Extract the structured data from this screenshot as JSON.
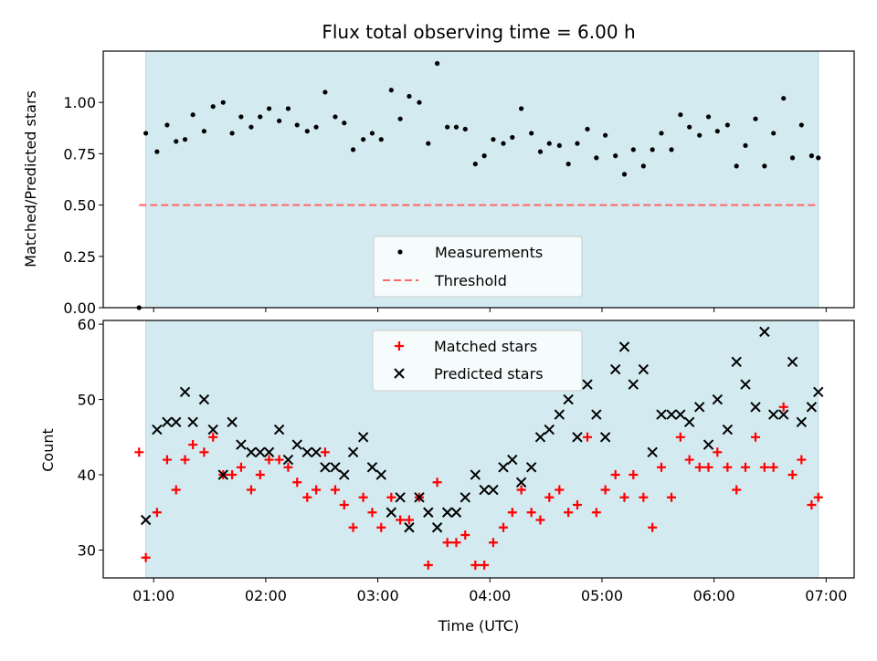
{
  "chart_data": [
    {
      "type": "scatter",
      "title": "Flux total observing time = 6.00 h",
      "xlabel": "",
      "ylabel": "Matched/Predicted stars",
      "xlim_hours": [
        0.55,
        7.25
      ],
      "ylim": [
        0.0,
        1.25
      ],
      "yticks": [
        "0.00",
        "0.25",
        "0.50",
        "0.75",
        "1.00"
      ],
      "ytick_values": [
        0.0,
        0.25,
        0.5,
        0.75,
        1.0
      ],
      "observing_window_hours": [
        0.93,
        6.93
      ],
      "colors": {
        "measurements": "#000000",
        "threshold": "#ff6666",
        "window": "#d3eaf0"
      },
      "threshold": {
        "name": "Threshold",
        "value": 0.5,
        "x_range": [
          0.87,
          6.93
        ]
      },
      "legend": {
        "placement": "lower center",
        "entries": [
          "Measurements",
          "Threshold"
        ]
      },
      "series": [
        {
          "name": "Measurements",
          "x": [
            0.87,
            0.93,
            1.03,
            1.12,
            1.2,
            1.28,
            1.35,
            1.45,
            1.53,
            1.62,
            1.7,
            1.78,
            1.87,
            1.95,
            2.03,
            2.12,
            2.2,
            2.28,
            2.37,
            2.45,
            2.53,
            2.62,
            2.7,
            2.78,
            2.87,
            2.95,
            3.03,
            3.12,
            3.2,
            3.28,
            3.37,
            3.45,
            3.53,
            3.62,
            3.7,
            3.78,
            3.87,
            3.95,
            4.03,
            4.12,
            4.2,
            4.28,
            4.37,
            4.45,
            4.53,
            4.62,
            4.7,
            4.78,
            4.87,
            4.95,
            5.03,
            5.12,
            5.2,
            5.28,
            5.37,
            5.45,
            5.53,
            5.62,
            5.7,
            5.78,
            5.87,
            5.95,
            6.03,
            6.12,
            6.2,
            6.28,
            6.37,
            6.45,
            6.53,
            6.62,
            6.7,
            6.78,
            6.87,
            6.93
          ],
          "y": [
            0.0,
            0.85,
            0.76,
            0.89,
            0.81,
            0.82,
            0.94,
            0.86,
            0.98,
            1.0,
            0.85,
            0.93,
            0.88,
            0.93,
            0.97,
            0.91,
            0.97,
            0.89,
            0.86,
            0.88,
            1.05,
            0.93,
            0.9,
            0.77,
            0.82,
            0.85,
            0.82,
            1.06,
            0.92,
            1.03,
            1.0,
            0.8,
            1.19,
            0.88,
            0.88,
            0.87,
            0.7,
            0.74,
            0.82,
            0.8,
            0.83,
            0.97,
            0.85,
            0.76,
            0.8,
            0.79,
            0.7,
            0.8,
            0.87,
            0.73,
            0.84,
            0.74,
            0.65,
            0.77,
            0.69,
            0.77,
            0.85,
            0.77,
            0.94,
            0.88,
            0.84,
            0.93,
            0.86,
            0.89,
            0.69,
            0.79,
            0.92,
            0.69,
            0.85,
            1.02,
            0.73,
            0.89,
            0.74,
            0.73
          ]
        }
      ]
    },
    {
      "type": "scatter",
      "title": "",
      "xlabel": "Time (UTC)",
      "ylabel": "Count",
      "xlim_hours": [
        0.55,
        7.25
      ],
      "ylim": [
        26.3,
        60.5
      ],
      "yticks": [
        "30",
        "40",
        "50",
        "60"
      ],
      "ytick_values": [
        30,
        40,
        50,
        60
      ],
      "xticks": [
        "01:00",
        "02:00",
        "03:00",
        "04:00",
        "05:00",
        "06:00",
        "07:00"
      ],
      "xtick_values": [
        1,
        2,
        3,
        4,
        5,
        6,
        7
      ],
      "observing_window_hours": [
        0.93,
        6.93
      ],
      "colors": {
        "matched": "#ff0000",
        "predicted": "#000000",
        "window": "#d3eaf0"
      },
      "legend": {
        "placement": "upper center",
        "entries": [
          "Matched stars",
          "Predicted stars"
        ]
      },
      "series": [
        {
          "name": "Matched stars",
          "x": [
            0.87,
            0.93,
            1.03,
            1.12,
            1.2,
            1.28,
            1.35,
            1.45,
            1.53,
            1.62,
            1.7,
            1.78,
            1.87,
            1.95,
            2.03,
            2.12,
            2.2,
            2.28,
            2.37,
            2.45,
            2.53,
            2.62,
            2.7,
            2.78,
            2.87,
            2.95,
            3.03,
            3.12,
            3.2,
            3.28,
            3.37,
            3.45,
            3.53,
            3.62,
            3.7,
            3.78,
            3.87,
            3.95,
            4.03,
            4.12,
            4.2,
            4.28,
            4.37,
            4.45,
            4.53,
            4.62,
            4.7,
            4.78,
            4.87,
            4.95,
            5.03,
            5.12,
            5.2,
            5.28,
            5.37,
            5.45,
            5.53,
            5.62,
            5.7,
            5.78,
            5.87,
            5.95,
            6.03,
            6.12,
            6.2,
            6.28,
            6.37,
            6.45,
            6.53,
            6.62,
            6.7,
            6.78,
            6.87,
            6.93
          ],
          "y": [
            43,
            29,
            35,
            42,
            38,
            42,
            44,
            43,
            45,
            40,
            40,
            41,
            38,
            40,
            42,
            42,
            41,
            39,
            37,
            38,
            43,
            38,
            36,
            33,
            37,
            35,
            33,
            37,
            34,
            34,
            37,
            28,
            39,
            31,
            31,
            32,
            28,
            28,
            31,
            33,
            35,
            38,
            35,
            34,
            37,
            38,
            35,
            36,
            45,
            35,
            38,
            40,
            37,
            40,
            37,
            33,
            41,
            37,
            45,
            42,
            41,
            41,
            43,
            41,
            38,
            41,
            45,
            41,
            41,
            49,
            40,
            42,
            36,
            37
          ]
        },
        {
          "name": "Predicted stars",
          "x": [
            0.93,
            1.03,
            1.12,
            1.2,
            1.28,
            1.35,
            1.45,
            1.53,
            1.62,
            1.7,
            1.78,
            1.87,
            1.95,
            2.03,
            2.12,
            2.2,
            2.28,
            2.37,
            2.45,
            2.53,
            2.62,
            2.7,
            2.78,
            2.87,
            2.95,
            3.03,
            3.12,
            3.2,
            3.28,
            3.37,
            3.45,
            3.53,
            3.62,
            3.7,
            3.78,
            3.87,
            3.95,
            4.03,
            4.12,
            4.2,
            4.28,
            4.37,
            4.45,
            4.53,
            4.62,
            4.7,
            4.78,
            4.87,
            4.95,
            5.03,
            5.12,
            5.2,
            5.28,
            5.37,
            5.45,
            5.53,
            5.62,
            5.7,
            5.78,
            5.87,
            5.95,
            6.03,
            6.12,
            6.2,
            6.28,
            6.37,
            6.45,
            6.53,
            6.62,
            6.7,
            6.78,
            6.87,
            6.93
          ],
          "y": [
            34,
            46,
            47,
            47,
            51,
            47,
            50,
            46,
            40,
            47,
            44,
            43,
            43,
            43,
            46,
            42,
            44,
            43,
            43,
            41,
            41,
            40,
            43,
            45,
            41,
            40,
            35,
            37,
            33,
            37,
            35,
            33,
            35,
            35,
            37,
            40,
            38,
            38,
            41,
            42,
            39,
            41,
            45,
            46,
            48,
            50,
            45,
            52,
            48,
            45,
            54,
            57,
            52,
            54,
            43,
            48,
            48,
            48,
            47,
            49,
            44,
            50,
            46,
            55,
            52,
            49,
            59,
            48,
            48,
            55,
            47,
            49,
            51
          ]
        }
      ]
    }
  ]
}
